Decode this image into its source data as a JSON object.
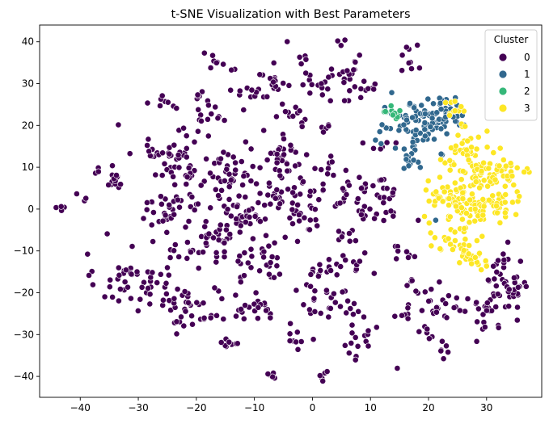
{
  "chart_data": {
    "type": "scatter",
    "title": "t-SNE Visualization with Best Parameters",
    "xlabel": "",
    "ylabel": "",
    "xlim": [
      -47,
      39.5
    ],
    "ylim": [
      -45,
      44
    ],
    "xticks": [
      -40,
      -30,
      -20,
      -10,
      0,
      10,
      20,
      30
    ],
    "yticks": [
      -40,
      -30,
      -20,
      -10,
      0,
      10,
      20,
      30,
      40
    ],
    "grid": false,
    "legend": {
      "title": "Cluster",
      "placement": "top-right"
    },
    "series": [
      {
        "name": "0",
        "color": "#440154",
        "clusters": [
          [
            -43.5,
            1.2,
            0.8,
            4
          ],
          [
            -40,
            3,
            0.8,
            3
          ],
          [
            -37.5,
            9,
            0.6,
            3
          ],
          [
            -35,
            -5.8,
            0.2,
            1
          ],
          [
            -34,
            6.5,
            1.1,
            12
          ],
          [
            -33.5,
            20.3,
            0.2,
            1
          ],
          [
            -34.5,
            10.3,
            0.3,
            1
          ],
          [
            -31,
            -17,
            3.2,
            48
          ],
          [
            -24.5,
            12.5,
            3.2,
            46
          ],
          [
            -25.5,
            25.5,
            1.2,
            8
          ],
          [
            -24,
            0,
            3,
            40
          ],
          [
            -22.5,
            19,
            0.3,
            1
          ],
          [
            -21,
            -23,
            3.2,
            42
          ],
          [
            -18,
            -10,
            2.6,
            28
          ],
          [
            -19.5,
            27,
            1,
            6
          ],
          [
            -17.5,
            22,
            1.5,
            12
          ],
          [
            -16.5,
            36,
            1.5,
            8
          ],
          [
            -14,
            8.5,
            3,
            44
          ],
          [
            -14.5,
            -32,
            1.2,
            9
          ],
          [
            -13,
            -2.5,
            3,
            44
          ],
          [
            -13,
            28,
            2,
            8
          ],
          [
            -10,
            -22.5,
            2.2,
            22
          ],
          [
            -9,
            28,
            1.2,
            6
          ],
          [
            -8,
            -12.5,
            2.8,
            30
          ],
          [
            -7.5,
            -40,
            0.8,
            5
          ],
          [
            -6.5,
            29.5,
            1.4,
            10
          ],
          [
            -5,
            13.5,
            2.4,
            28
          ],
          [
            -3.5,
            4.5,
            3,
            42
          ],
          [
            -3,
            -31,
            1.2,
            9
          ],
          [
            -3.5,
            22,
            1.8,
            12
          ],
          [
            -2,
            35,
            1.6,
            5
          ],
          [
            -2,
            -2.8,
            2.4,
            16
          ],
          [
            -4.5,
            40.2,
            0.2,
            1
          ],
          [
            -6.5,
            30.5,
            0.5,
            3
          ],
          [
            0,
            30,
            1.5,
            8
          ],
          [
            0,
            -20,
            1.5,
            8
          ],
          [
            1,
            -14.3,
            1.1,
            10
          ],
          [
            1,
            -25.5,
            1.5,
            4
          ],
          [
            2,
            -40,
            0.6,
            5
          ],
          [
            2.5,
            20,
            0.8,
            5
          ],
          [
            3,
            10,
            1.5,
            8
          ],
          [
            4.5,
            -22,
            1.6,
            16
          ],
          [
            4.5,
            30,
            2.2,
            18
          ],
          [
            5,
            2,
            2.2,
            14
          ],
          [
            5,
            39.5,
            0.8,
            3
          ],
          [
            6,
            -13,
            2,
            14
          ],
          [
            6,
            34,
            1.8,
            9
          ],
          [
            7,
            -6,
            1.5,
            8
          ],
          [
            7.5,
            -32,
            1.5,
            8
          ],
          [
            7.5,
            -36,
            0.6,
            2
          ],
          [
            9,
            -28.5,
            1.2,
            6
          ],
          [
            10.5,
            3.5,
            1.6,
            14
          ],
          [
            10.5,
            29.5,
            1.2,
            6
          ],
          [
            11,
            15.5,
            1.2,
            6
          ],
          [
            11.5,
            -0.8,
            1.5,
            12
          ],
          [
            13,
            5,
            1.2,
            8
          ],
          [
            14.5,
            -38,
            0.2,
            1
          ],
          [
            15.5,
            -25,
            1.2,
            7
          ],
          [
            16,
            -10,
            1.4,
            8
          ],
          [
            16.5,
            35.5,
            1.8,
            9
          ],
          [
            18.5,
            -19,
            1.5,
            10
          ],
          [
            18.5,
            -2.5,
            0.2,
            1
          ],
          [
            20,
            -29,
            1.2,
            6
          ],
          [
            21,
            -23,
            1.5,
            10
          ],
          [
            22.5,
            -34.2,
            1,
            6
          ],
          [
            26,
            -23.5,
            2,
            14
          ],
          [
            31,
            -23.8,
            2.8,
            24
          ],
          [
            34,
            -19,
            1.8,
            26
          ],
          [
            33,
            -13,
            1.8,
            12
          ]
        ]
      },
      {
        "name": "1",
        "color": "#31688e",
        "clusters": [
          [
            17.5,
            20.5,
            3,
            52
          ],
          [
            21,
            22,
            2.6,
            40
          ],
          [
            18,
            14,
            1.5,
            12
          ],
          [
            23.5,
            23.5,
            1.5,
            10
          ],
          [
            17,
            11.5,
            1.3,
            8
          ],
          [
            21.5,
            -2.5,
            0.2,
            1
          ]
        ]
      },
      {
        "name": "2",
        "color": "#35b779",
        "clusters": [
          [
            13,
            22.8,
            0.8,
            14
          ]
        ]
      },
      {
        "name": "3",
        "color": "#fde725",
        "clusters": [
          [
            24.5,
            24,
            1.3,
            10
          ],
          [
            26,
            12,
            2.2,
            28
          ],
          [
            28,
            18.5,
            1.5,
            10
          ],
          [
            29.5,
            9,
            2.6,
            34
          ],
          [
            33,
            8,
            2.2,
            26
          ],
          [
            22.5,
            3.5,
            1.8,
            20
          ],
          [
            25.5,
            2.5,
            2.5,
            34
          ],
          [
            28.5,
            1.5,
            2.5,
            34
          ],
          [
            32,
            0.5,
            2.5,
            28
          ],
          [
            24,
            -6.5,
            2,
            20
          ],
          [
            26,
            -10,
            1.8,
            16
          ],
          [
            28.5,
            -12.2,
            1.5,
            12
          ]
        ]
      }
    ]
  }
}
